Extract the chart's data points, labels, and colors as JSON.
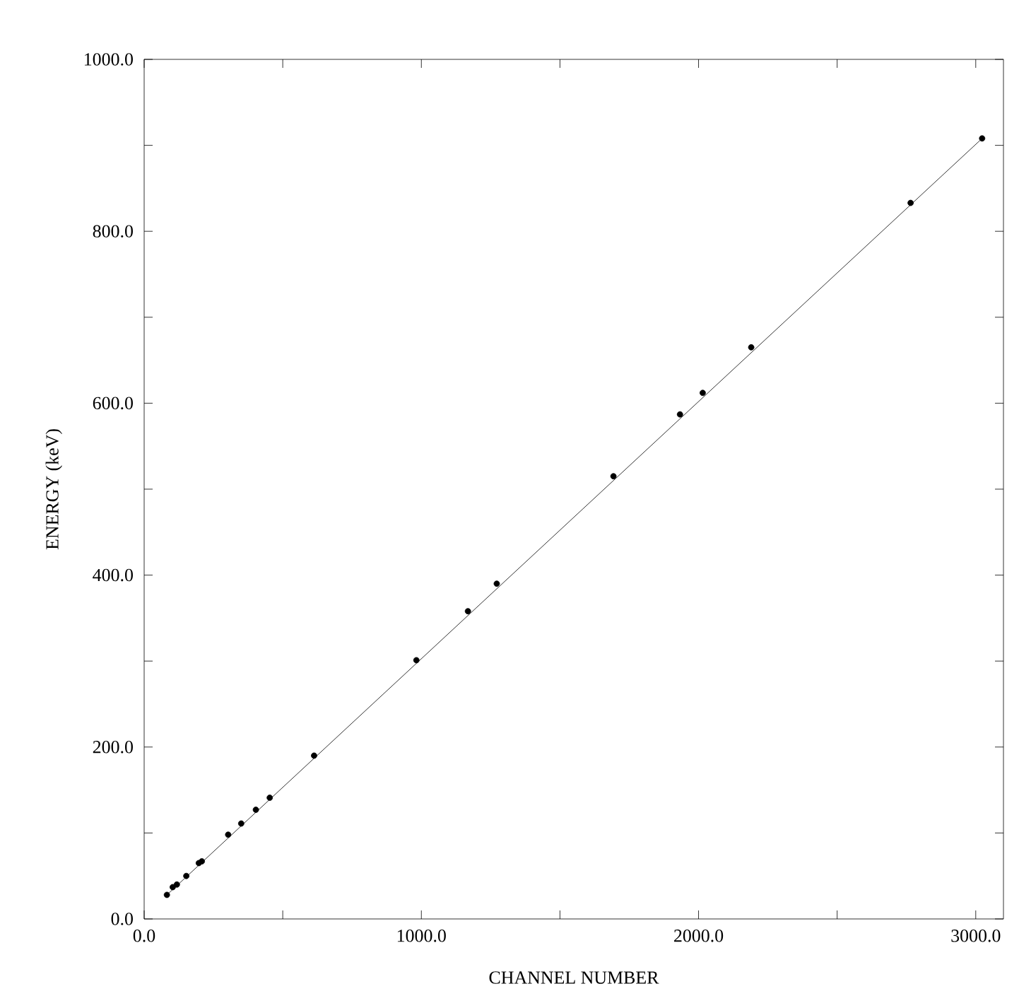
{
  "chart_data": {
    "type": "scatter",
    "xlabel": "CHANNEL NUMBER",
    "ylabel": "ENERGY (keV)",
    "xlim": [
      0,
      3100
    ],
    "ylim": [
      0,
      1000
    ],
    "xticks": [
      {
        "value": 0,
        "label": "0.0"
      },
      {
        "value": 500,
        "label": null
      },
      {
        "value": 1000,
        "label": "1000.0"
      },
      {
        "value": 1500,
        "label": null
      },
      {
        "value": 2000,
        "label": "2000.0"
      },
      {
        "value": 2500,
        "label": null
      },
      {
        "value": 3000,
        "label": "3000.0"
      }
    ],
    "yticks": [
      {
        "value": 0,
        "label": "0.0"
      },
      {
        "value": 100,
        "label": null
      },
      {
        "value": 200,
        "label": "200.0"
      },
      {
        "value": 300,
        "label": null
      },
      {
        "value": 400,
        "label": "400.0"
      },
      {
        "value": 500,
        "label": null
      },
      {
        "value": 600,
        "label": "600.0"
      },
      {
        "value": 700,
        "label": null
      },
      {
        "value": 800,
        "label": "800.0"
      },
      {
        "value": 900,
        "label": null
      },
      {
        "value": 1000,
        "label": "1000.0"
      }
    ],
    "series": [
      {
        "color": "#000000",
        "marker": "circle",
        "x": [
          82,
          103,
          118,
          152,
          197,
          208,
          303,
          350,
          403,
          453,
          613,
          982,
          1168,
          1272,
          1693,
          1933,
          2015,
          2190,
          2765,
          3023
        ],
        "values": [
          28,
          37,
          40,
          50,
          65,
          67,
          98,
          111,
          127,
          141,
          190,
          301,
          358,
          390,
          515,
          587,
          612,
          665,
          833,
          908
        ]
      },
      {
        "type": "line",
        "color": "#000000",
        "marker": "none",
        "line_style": "solid",
        "x": [
          82,
          3023
        ],
        "values": [
          28,
          908
        ]
      }
    ]
  }
}
